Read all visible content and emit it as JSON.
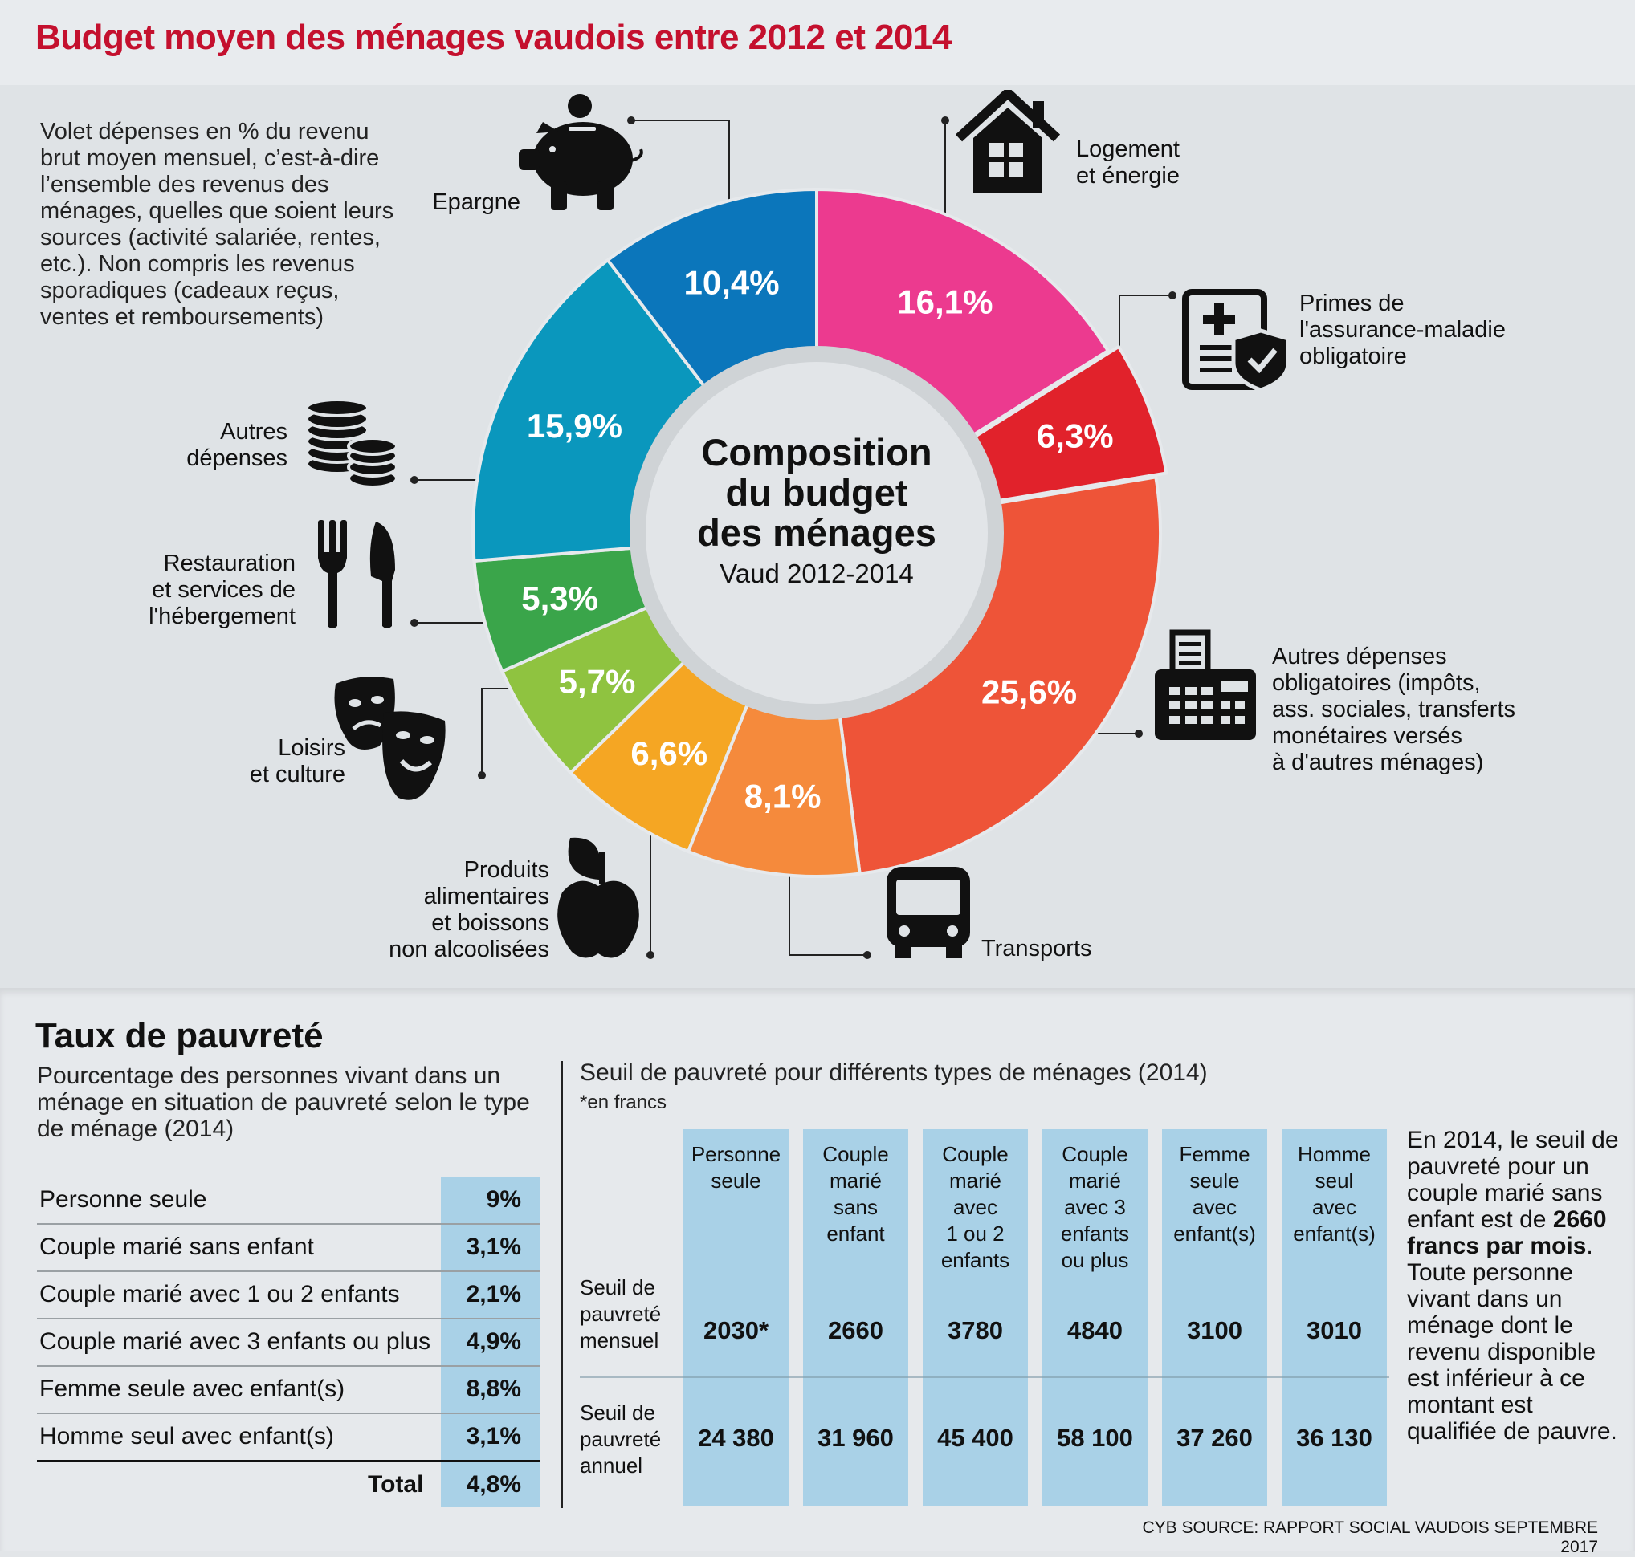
{
  "title": "Budget moyen des ménages vaudois entre 2012 et 2014",
  "intro": "Volet dépenses en % du revenu brut moyen mensuel, c’est-à-dire l’ensemble des revenus des ménages, quelles que soient leurs sources (activité salariée, rentes, etc.). Non compris les revenus sporadiques (cadeaux reçus, ventes et remboursements)",
  "chart_data": {
    "type": "pie",
    "title": "Composition du budget des ménages",
    "subtitle": "Vaud 2012-2014",
    "center_lines": [
      "Composition",
      "du budget",
      "des ménages"
    ],
    "categories": [
      "Logement et énergie",
      "Primes de l'assurance-maladie obligatoire",
      "Autres dépenses obligatoires (impôts, ass. sociales, transferts monétaires versés à d'autres ménages)",
      "Transports",
      "Produits alimentaires et boissons non alcoolisées",
      "Loisirs et culture",
      "Restauration et services de l'hébergement",
      "Autres dépenses",
      "Epargne"
    ],
    "values": [
      16.1,
      6.3,
      25.6,
      8.1,
      6.6,
      5.7,
      5.3,
      15.9,
      10.4
    ],
    "value_labels": [
      "16,1%",
      "6,3%",
      "25,6%",
      "8,1%",
      "6,6%",
      "5,7%",
      "5,3%",
      "15,9%",
      "10,4%"
    ],
    "colors": [
      "#ec3a8f",
      "#e1222b",
      "#ee5438",
      "#f58a3c",
      "#f5a623",
      "#8fc340",
      "#3aa54a",
      "#0a97bd",
      "#0b76bb"
    ],
    "label_lines": [
      [
        "Logement",
        "et énergie"
      ],
      [
        "Primes de",
        "l'assurance-maladie",
        "obligatoire"
      ],
      [
        "Autres dépenses",
        "obligatoires (impôts,",
        "ass. sociales, transferts",
        "monétaires versés",
        "à d'autres ménages)"
      ],
      [
        "Transports"
      ],
      [
        "Produits",
        "alimentaires",
        "et boissons",
        "non alcoolisées"
      ],
      [
        "Loisirs",
        "et culture"
      ],
      [
        "Restauration",
        "et services de",
        "l'hébergement"
      ],
      [
        "Autres",
        "dépenses"
      ],
      [
        "Epargne"
      ]
    ]
  },
  "poverty": {
    "title": "Taux de pauvreté",
    "description": "Pourcentage des personnes vivant dans un ménage en situation de pauvreté selon le type de ménage (2014)",
    "rows": [
      {
        "label": "Personne seule",
        "value": "9%"
      },
      {
        "label": "Couple marié sans enfant",
        "value": "3,1%"
      },
      {
        "label": "Couple marié avec 1 ou 2 enfants",
        "value": "2,1%"
      },
      {
        "label": "Couple marié avec 3 enfants ou plus",
        "value": "4,9%"
      },
      {
        "label": "Femme seule avec enfant(s)",
        "value": "8,8%"
      },
      {
        "label": "Homme seul avec enfant(s)",
        "value": "3,1%"
      }
    ],
    "total_label": "Total",
    "total_value": "4,8%"
  },
  "threshold": {
    "title": "Seuil de pauvreté pour différents types de ménages (2014)",
    "unit_note": "*en francs",
    "row_labels": [
      [
        "Seuil de",
        "pauvreté",
        "mensuel"
      ],
      [
        "Seuil de",
        "pauvreté",
        "annuel"
      ]
    ],
    "columns": [
      {
        "header": [
          "Personne",
          "seule"
        ],
        "monthly": "2030*",
        "annual": "24 380"
      },
      {
        "header": [
          "Couple",
          "marié",
          "sans",
          "enfant"
        ],
        "monthly": "2660",
        "annual": "31 960"
      },
      {
        "header": [
          "Couple",
          "marié",
          "avec",
          "1 ou 2",
          "enfants"
        ],
        "monthly": "3780",
        "annual": "45 400"
      },
      {
        "header": [
          "Couple",
          "marié",
          "avec 3",
          "enfants",
          "ou plus"
        ],
        "monthly": "4840",
        "annual": "58 100"
      },
      {
        "header": [
          "Femme",
          "seule",
          "avec",
          "enfant(s)"
        ],
        "monthly": "3100",
        "annual": "37 260"
      },
      {
        "header": [
          "Homme",
          "seul",
          "avec",
          "enfant(s)"
        ],
        "monthly": "3010",
        "annual": "36 130"
      }
    ]
  },
  "note": {
    "before": "En 2014, le seuil de pauvreté pour un couple marié sans enfant est de ",
    "bold": "2660 francs par mois",
    "after": ". Toute personne vivant dans un ménage dont le revenu disponible est inférieur à ce montant est qualifiée de pauvre."
  },
  "source": "CYB SOURCE: RAPPORT SOCIAL VAUDOIS SEPTEMBRE 2017",
  "icons": [
    "piggy-bank-icon",
    "house-icon",
    "insurance-document-icon",
    "fax-phone-icon",
    "bus-icon",
    "apple-icon",
    "theater-masks-icon",
    "cutlery-icon",
    "coins-icon"
  ]
}
